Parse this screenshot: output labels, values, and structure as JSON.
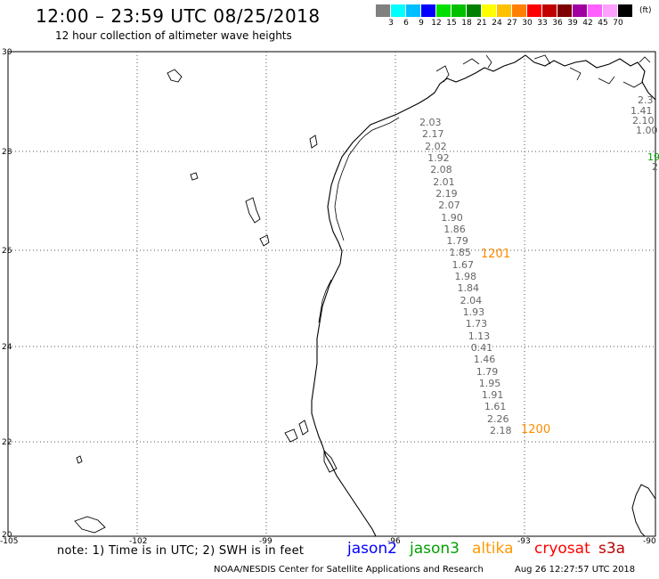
{
  "header": {
    "title": "12:00 – 23:59 UTC 08/25/2018",
    "subtitle": "12 hour collection of altimeter wave heights"
  },
  "color_scale": {
    "unit": "(ft)",
    "colors": [
      "#808080",
      "#00ffff",
      "#00bfff",
      "#0000ff",
      "#00e000",
      "#00c000",
      "#008000",
      "#ffff00",
      "#ffc000",
      "#ff8000",
      "#ff0000",
      "#c00000",
      "#800000",
      "#a000a0",
      "#ff60ff",
      "#ffa0ff",
      "#000000"
    ],
    "labels": [
      "3",
      "6",
      "9",
      "12",
      "15",
      "18",
      "21",
      "24",
      "27",
      "30",
      "33",
      "36",
      "39",
      "42",
      "45",
      "70"
    ]
  },
  "axes": {
    "lat_labels": [
      "30",
      "28",
      "26",
      "24",
      "22",
      "20"
    ],
    "lon_labels": [
      "-105",
      "-102",
      "-99",
      "-96",
      "-93",
      "-90"
    ]
  },
  "tracks": {
    "main_values": [
      "2.03",
      "2.17",
      "2.02",
      "1.92",
      "2.08",
      "2.01",
      "2.19",
      "2.07",
      "1.90",
      "1.86",
      "1.79",
      "1.85",
      "1.67",
      "1.98",
      "1.84",
      "2.04",
      "1.93",
      "1.73",
      "1.13",
      "0.41",
      "1.46",
      "1.79",
      "1.95",
      "1.91",
      "1.61",
      "2.26",
      "2.18"
    ],
    "east_values": [
      "2.3",
      "1.41",
      "2.10",
      "1.00"
    ],
    "east_green": "19.",
    "east_grey_2": "2",
    "time_marks": [
      "1201",
      "1200"
    ]
  },
  "footer": {
    "note": "note: 1) Time is in UTC; 2) SWH is in feet",
    "legend": [
      {
        "label": "jason2",
        "color": "#0000ff"
      },
      {
        "label": "jason3",
        "color": "#00a000"
      },
      {
        "label": "altika",
        "color": "#ff9900"
      },
      {
        "label": "cryosat",
        "color": "#ff0000"
      },
      {
        "label": "s3a",
        "color": "#c00000"
      }
    ],
    "credit": "NOAA/NESDIS Center for Satellite Applications and Research",
    "timestamp": "Aug 26 12:27:57 UTC 2018"
  }
}
